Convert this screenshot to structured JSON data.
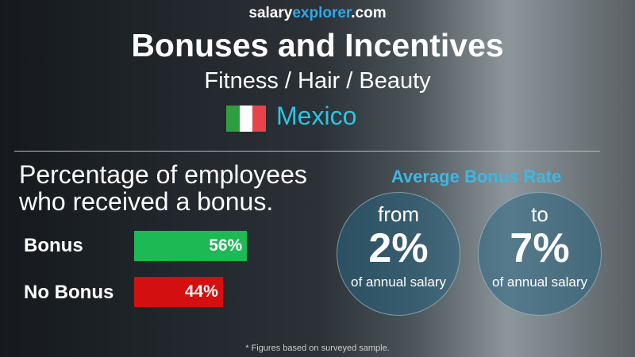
{
  "brand": {
    "part1": "salary",
    "part2": "explorer",
    "part3": ".com"
  },
  "title": "Bonuses and Incentives",
  "subtitle": "Fitness / Hair / Beauty",
  "country": "Mexico",
  "flag_colors": [
    "#2e9e3f",
    "#ffffff",
    "#e8434b"
  ],
  "chart_heading": "Percentage of employees who received a bonus.",
  "chart_data": {
    "type": "bar",
    "orientation": "horizontal",
    "categories": [
      "Bonus",
      "No Bonus"
    ],
    "values": [
      56,
      44
    ],
    "labels": [
      "56%",
      "44%"
    ],
    "colors": [
      "#1db954",
      "#d40f0f"
    ]
  },
  "avg": {
    "heading": "Average Bonus Rate",
    "from": {
      "word": "from",
      "value": "2%",
      "caption": "of annual salary"
    },
    "to": {
      "word": "to",
      "value": "7%",
      "caption": "of annual salary"
    }
  },
  "footnote": "* Figures based on surveyed sample."
}
